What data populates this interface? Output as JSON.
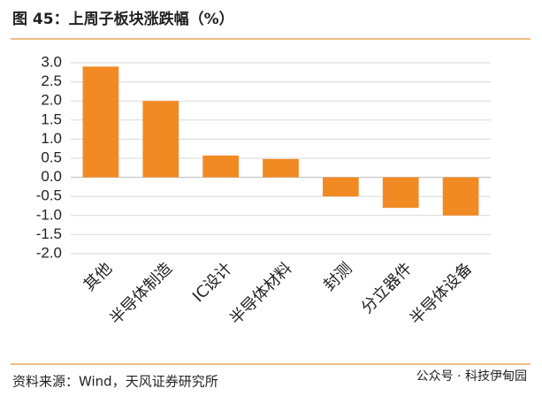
{
  "chart_data": {
    "type": "bar",
    "title": "图 45：上周子板块涨跌幅（%）",
    "categories": [
      "其他",
      "半导体制造",
      "IC设计",
      "半导体材料",
      "封测",
      "分立器件",
      "半导体设备"
    ],
    "values": [
      2.9,
      2.0,
      0.57,
      0.48,
      -0.5,
      -0.8,
      -1.0
    ],
    "color": "#f28a24",
    "ylim": [
      -2.0,
      3.0
    ],
    "yticks": [
      {
        "value": 3,
        "label": "3.0"
      },
      {
        "value": 2.5,
        "label": "2.5"
      },
      {
        "value": 2,
        "label": "2.0"
      },
      {
        "value": 1.5,
        "label": "1.5"
      },
      {
        "value": 1,
        "label": "1.0"
      },
      {
        "value": 0.5,
        "label": "0.5"
      },
      {
        "value": 0,
        "label": "0.0"
      },
      {
        "value": -0.5,
        "label": "-0.5"
      },
      {
        "value": -1,
        "label": "-1.0"
      },
      {
        "value": -1.5,
        "label": "-1.5"
      },
      {
        "value": -2,
        "label": "-2.0"
      }
    ],
    "grid": true,
    "source": "资料来源：Wind，天风证券研究所",
    "watermark": "公众号 · 科技伊甸园"
  }
}
